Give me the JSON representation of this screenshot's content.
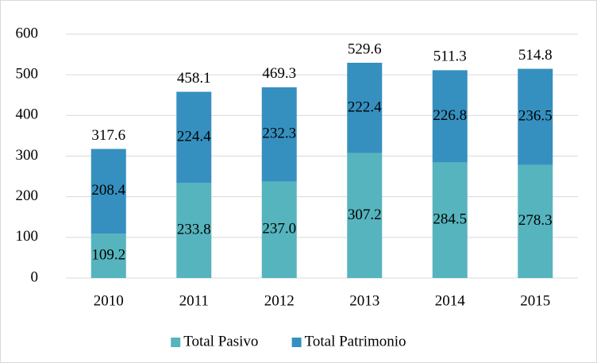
{
  "chart_data": {
    "type": "stacked-bar",
    "categories": [
      "2010",
      "2011",
      "2012",
      "2013",
      "2014",
      "2015"
    ],
    "series": [
      {
        "name": "Total Pasivo",
        "color": "#56b4be",
        "values": [
          109.2,
          233.8,
          237.0,
          307.2,
          284.5,
          278.3
        ],
        "value_labels": [
          "109.2",
          "233.8",
          "237.0",
          "307.2",
          "284.5",
          "278.3"
        ]
      },
      {
        "name": "Total Patrimonio",
        "color": "#3590bf",
        "values": [
          208.4,
          224.4,
          232.3,
          222.4,
          226.8,
          236.5
        ],
        "value_labels": [
          "208.4",
          "224.4",
          "232.3",
          "222.4",
          "226.8",
          "236.5"
        ]
      }
    ],
    "totals": [
      "317.6",
      "458.1",
      "469.3",
      "529.6",
      "511.3",
      "514.8"
    ],
    "ylim": [
      0,
      600
    ],
    "yticks": [
      0,
      100,
      200,
      300,
      400,
      500,
      600
    ],
    "grid": true,
    "legend": "bottom"
  }
}
